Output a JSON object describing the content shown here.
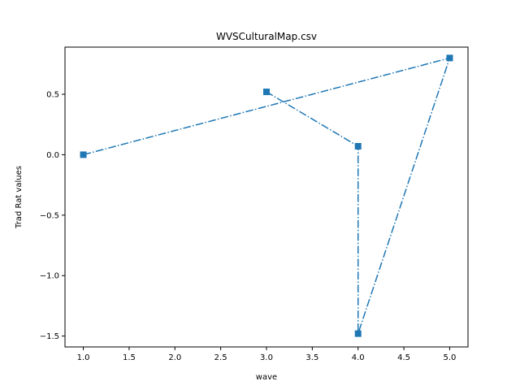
{
  "chart_data": {
    "type": "line",
    "title": "WVSCulturalMap.csv",
    "xlabel": "wave",
    "ylabel": "Trad Rat values",
    "xlim": [
      0.8,
      5.2
    ],
    "ylim": [
      -1.59,
      0.89
    ],
    "xticks": [
      1.0,
      1.5,
      2.0,
      2.5,
      3.0,
      3.5,
      4.0,
      4.5,
      5.0
    ],
    "xtick_labels": [
      "1.0",
      "1.5",
      "2.0",
      "2.5",
      "3.0",
      "3.5",
      "4.0",
      "4.5",
      "5.0"
    ],
    "yticks": [
      -1.5,
      -1.0,
      -0.5,
      0.0,
      0.5
    ],
    "ytick_labels": [
      "−1.5",
      "−1.0",
      "−0.5",
      "0.0",
      "0.5"
    ],
    "grid": false,
    "series": [
      {
        "color": "#1f77b4",
        "linestyle": "dashdot",
        "marker": "square",
        "x": [
          1,
          5,
          4,
          4,
          3
        ],
        "y": [
          0.0,
          0.8,
          -1.48,
          0.07,
          0.52
        ]
      }
    ]
  }
}
